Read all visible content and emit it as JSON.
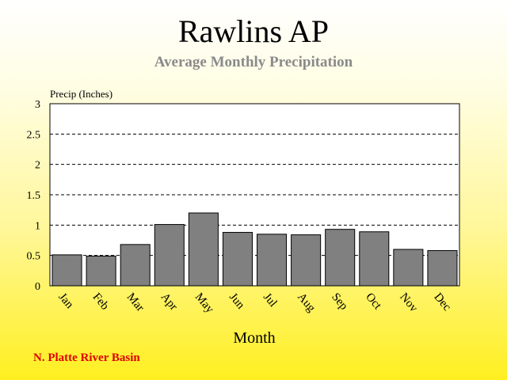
{
  "title": "Rawlins AP",
  "footnote": "N. Platte River Basin",
  "colors": {
    "bar": "#808080",
    "title": "#000000",
    "subtitle": "#8a8a8a",
    "footnote": "#e00000"
  },
  "chart_data": {
    "type": "bar",
    "title": "Rawlins AP",
    "subtitle": "Average Monthly Precipitation",
    "xlabel": "Month",
    "ylabel": "Precip (Inches)",
    "categories": [
      "Jan",
      "Feb",
      "Mar",
      "Apr",
      "May",
      "Jun",
      "Jul",
      "Aug",
      "Sep",
      "Oct",
      "Nov",
      "Dec"
    ],
    "values": [
      0.51,
      0.49,
      0.68,
      1.01,
      1.2,
      0.88,
      0.85,
      0.84,
      0.93,
      0.89,
      0.6,
      0.58
    ],
    "ylim": [
      0,
      3
    ],
    "yticks": [
      "0",
      "0.5",
      "1",
      "1.5",
      "2",
      "2.5",
      "3"
    ],
    "grid": true,
    "legend": "none"
  }
}
